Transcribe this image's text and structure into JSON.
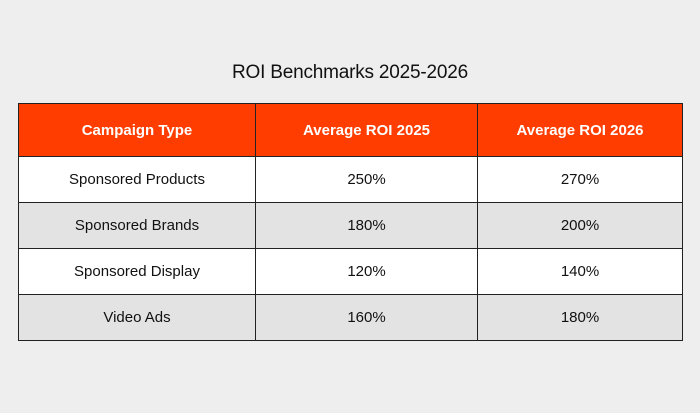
{
  "title": "ROI Benchmarks 2025-2026",
  "colors": {
    "header_bg": "#ff3d00",
    "header_text": "#ffffff",
    "row_odd": "#ffffff",
    "row_even": "#e3e3e3",
    "page_bg": "#eeeeee"
  },
  "chart_data": {
    "type": "table",
    "title": "ROI Benchmarks 2025-2026",
    "columns": [
      "Campaign Type",
      "Average ROI 2025",
      "Average ROI 2026"
    ],
    "rows": [
      [
        "Sponsored Products",
        "250%",
        "270%"
      ],
      [
        "Sponsored Brands",
        "180%",
        "200%"
      ],
      [
        "Sponsored Display",
        "120%",
        "140%"
      ],
      [
        "Video Ads",
        "160%",
        "180%"
      ]
    ]
  }
}
